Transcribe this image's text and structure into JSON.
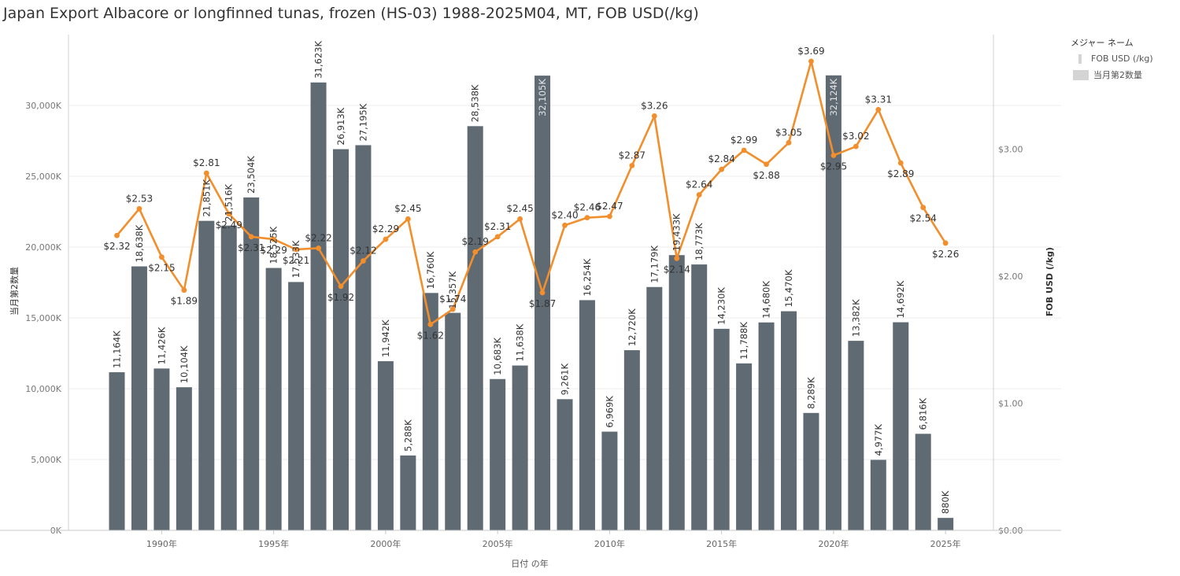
{
  "title": "Japan Export Albacore or longfinned tunas, frozen (HS-03) 1988-2025M04, MT, FOB USD(/kg)",
  "legend": {
    "title": "メジャー ネーム",
    "items": [
      {
        "label": "FOB USD (/kg)",
        "swatch": "line"
      },
      {
        "label": "当月第2数量",
        "swatch": "bar"
      }
    ]
  },
  "chart_data": {
    "type": "bar",
    "xlabel": "日付 の年",
    "ylabel_left": "当月第2数量",
    "ylabel_right": "FOB USD (/kg)",
    "ylim_left": [
      0,
      35000
    ],
    "ylim_right": [
      0,
      3.9
    ],
    "left_ticks": [
      {
        "v": 0,
        "label": "0K"
      },
      {
        "v": 5000,
        "label": "5,000K"
      },
      {
        "v": 10000,
        "label": "10,000K"
      },
      {
        "v": 15000,
        "label": "15,000K"
      },
      {
        "v": 20000,
        "label": "20,000K"
      },
      {
        "v": 25000,
        "label": "25,000K"
      },
      {
        "v": 30000,
        "label": "30,000K"
      }
    ],
    "right_ticks": [
      {
        "v": 0,
        "label": "$0.00"
      },
      {
        "v": 1,
        "label": "$1.00"
      },
      {
        "v": 2,
        "label": "$2.00"
      },
      {
        "v": 3,
        "label": "$3.00"
      }
    ],
    "x_ticks": [
      {
        "year": 1990,
        "label": "1990年"
      },
      {
        "year": 1995,
        "label": "1995年"
      },
      {
        "year": 2000,
        "label": "2000年"
      },
      {
        "year": 2005,
        "label": "2005年"
      },
      {
        "year": 2010,
        "label": "2010年"
      },
      {
        "year": 2015,
        "label": "2015年"
      },
      {
        "year": 2020,
        "label": "2020年"
      },
      {
        "year": 2025,
        "label": "2025年"
      }
    ],
    "years": [
      1988,
      1989,
      1990,
      1991,
      1992,
      1993,
      1994,
      1995,
      1996,
      1997,
      1998,
      1999,
      2000,
      2001,
      2002,
      2003,
      2004,
      2005,
      2006,
      2007,
      2008,
      2009,
      2010,
      2011,
      2012,
      2013,
      2014,
      2015,
      2016,
      2017,
      2018,
      2019,
      2020,
      2021,
      2022,
      2023,
      2024,
      2025
    ],
    "series": [
      {
        "name": "当月第2数量",
        "kind": "bar",
        "color": "#5f6a73",
        "values": [
          11164,
          18638,
          11426,
          10104,
          21851,
          21516,
          23504,
          18525,
          17533,
          31623,
          26913,
          27195,
          11942,
          5288,
          16760,
          15357,
          28538,
          10683,
          11638,
          32105,
          9261,
          16254,
          6969,
          12720,
          17179,
          19433,
          18773,
          14230,
          11788,
          14680,
          15470,
          8289,
          32124,
          13382,
          4977,
          14692,
          6816,
          880
        ],
        "labels": [
          "11,164K",
          "18,638K",
          "11,426K",
          "10,104K",
          "21,851K",
          "21,516K",
          "23,504K",
          "18,525K",
          "17,533K",
          "31,623K",
          "26,913K",
          "27,195K",
          "11,942K",
          "5,288K",
          "16,760K",
          "15,357K",
          "28,538K",
          "10,683K",
          "11,638K",
          "32,105K",
          "9,261K",
          "16,254K",
          "6,969K",
          "12,720K",
          "17,179K",
          "19,433K",
          "18,773K",
          "14,230K",
          "11,788K",
          "14,680K",
          "15,470K",
          "8,289K",
          "32,124K",
          "13,382K",
          "4,977K",
          "14,692K",
          "6,816K",
          "880K"
        ]
      },
      {
        "name": "FOB USD (/kg)",
        "kind": "line",
        "color": "#f28e2b",
        "values": [
          2.32,
          2.53,
          2.15,
          1.89,
          2.81,
          2.49,
          2.31,
          2.29,
          2.21,
          2.22,
          1.92,
          2.12,
          2.29,
          2.45,
          1.62,
          1.74,
          2.19,
          2.31,
          2.45,
          1.87,
          2.4,
          2.46,
          2.47,
          2.87,
          3.26,
          2.14,
          2.64,
          2.84,
          2.99,
          2.88,
          3.05,
          3.69,
          2.95,
          3.02,
          3.31,
          2.89,
          2.54,
          2.26
        ],
        "labels": [
          "$2.32",
          "$2.53",
          "$2.15",
          "$1.89",
          "$2.81",
          "$2.49",
          "$2.31",
          "$2.29",
          "$2.21",
          "$2.22",
          "$1.92",
          "$2.12",
          "$2.29",
          "$2.45",
          "$1.62",
          "$1.74",
          "$2.19",
          "$2.31",
          "$2.45",
          "$1.87",
          "$2.40",
          "$2.46",
          "$2.47",
          "$2.87",
          "$3.26",
          "$2.14",
          "$2.64",
          "$2.84",
          "$2.99",
          "$2.88",
          "$3.05",
          "$3.69",
          "$2.95",
          "$3.02",
          "$3.31",
          "$2.89",
          "$2.54",
          "$2.26"
        ]
      }
    ]
  }
}
